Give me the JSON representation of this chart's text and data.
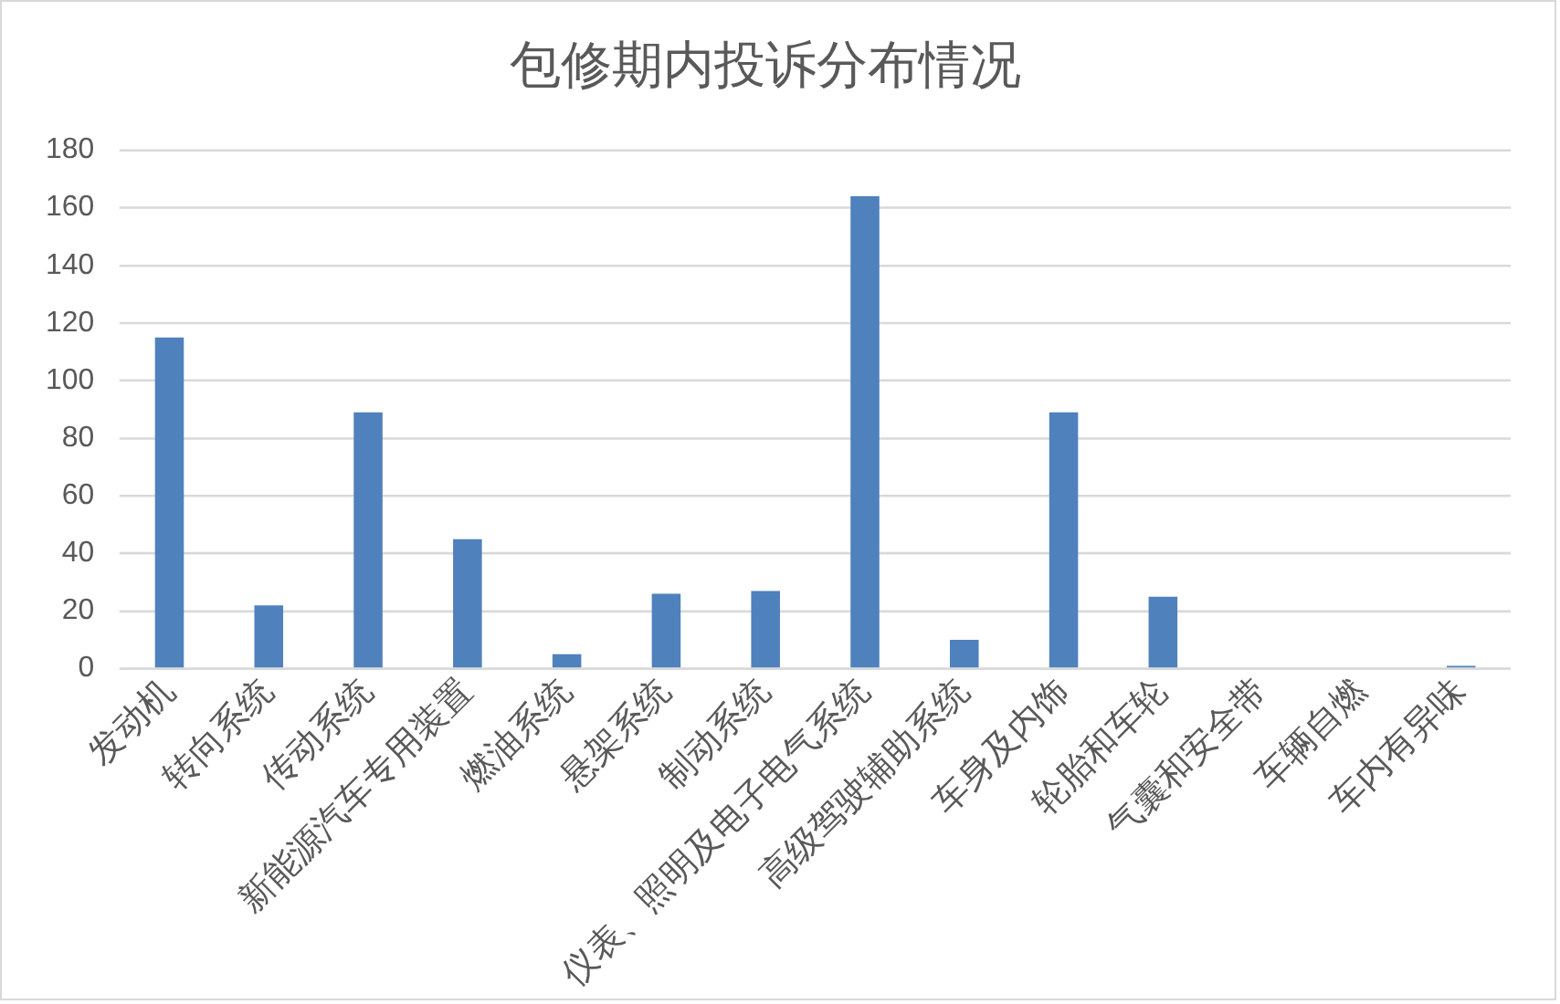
{
  "chart_data": {
    "type": "bar",
    "title": "包修期内投诉分布情况",
    "categories": [
      "发动机",
      "转向系统",
      "传动系统",
      "新能源汽车专用装置",
      "燃油系统",
      "悬架系统",
      "制动系统",
      "仪表、照明及电子电气系统",
      "高级驾驶辅助系统",
      "车身及内饰",
      "轮胎和车轮",
      "气囊和安全带",
      "车辆自燃",
      "车内有异味"
    ],
    "values": [
      115,
      22,
      89,
      45,
      5,
      26,
      27,
      164,
      10,
      89,
      25,
      0,
      0,
      1
    ],
    "color": "#4f81bd",
    "ylim": [
      0,
      180
    ],
    "yticks": [
      0,
      20,
      40,
      60,
      80,
      100,
      120,
      140,
      160,
      180
    ],
    "grid": "y"
  }
}
